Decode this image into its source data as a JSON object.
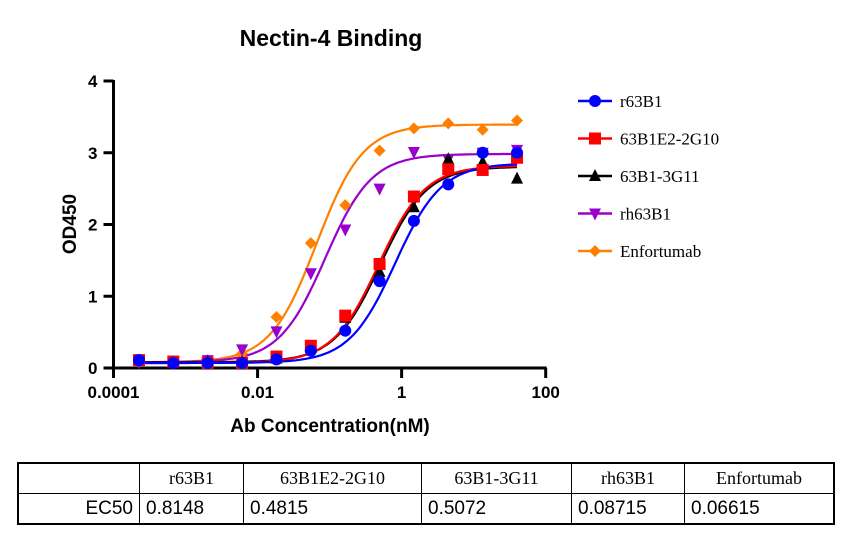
{
  "chart_data": {
    "type": "scatter",
    "title": "Nectin-4 Binding",
    "xlabel": "Ab Concentration(nM)",
    "ylabel": "OD450",
    "xscale": "log",
    "xlim": [
      0.0001,
      100
    ],
    "ylim": [
      0,
      4
    ],
    "xticks": [
      "0.0001",
      "0.01",
      "1",
      "100"
    ],
    "yticks": [
      "0",
      "1",
      "2",
      "3",
      "4"
    ],
    "grid": false,
    "legend_position": "right",
    "x": [
      0.000226,
      0.000677,
      0.00203,
      0.0061,
      0.0183,
      0.0549,
      0.165,
      0.494,
      1.48,
      4.44,
      13.33,
      40
    ],
    "series": [
      {
        "name": "r63B1",
        "color": "#0000ff",
        "marker": "circle",
        "values": [
          0.11,
          0.07,
          0.07,
          0.07,
          0.12,
          0.24,
          0.52,
          1.21,
          2.05,
          2.56,
          3.0,
          3.0
        ]
      },
      {
        "name": "63B1E2-2G10",
        "color": "#ff0000",
        "marker": "square",
        "values": [
          0.11,
          0.09,
          0.07,
          0.07,
          0.16,
          0.31,
          0.73,
          1.45,
          2.39,
          2.77,
          2.76,
          2.93
        ]
      },
      {
        "name": "63B1-3G11",
        "color": "#000000",
        "marker": "triangle-up",
        "values": [
          0.1,
          0.08,
          0.08,
          0.08,
          0.13,
          0.28,
          0.7,
          1.34,
          2.24,
          2.91,
          2.87,
          2.64
        ]
      },
      {
        "name": "rh63B1",
        "color": "#9900cc",
        "marker": "triangle-down",
        "values": [
          0.08,
          0.08,
          0.11,
          0.26,
          0.51,
          1.32,
          1.93,
          2.5,
          3.01,
          2.91,
          3.0,
          3.04
        ]
      },
      {
        "name": "Enfortumab",
        "color": "#ff8000",
        "marker": "diamond",
        "values": [
          0.08,
          0.08,
          0.11,
          0.2,
          0.71,
          1.74,
          2.27,
          3.03,
          3.34,
          3.41,
          3.32,
          3.45
        ]
      }
    ]
  },
  "table": {
    "headers": [
      "",
      "r63B1",
      "63B1E2-2G10",
      "63B1-3G11",
      "rh63B1",
      "Enfortumab"
    ],
    "row_label": "EC50",
    "values": [
      "0.8148",
      "0.4815",
      "0.5072",
      "0.08715",
      "0.06615"
    ]
  }
}
